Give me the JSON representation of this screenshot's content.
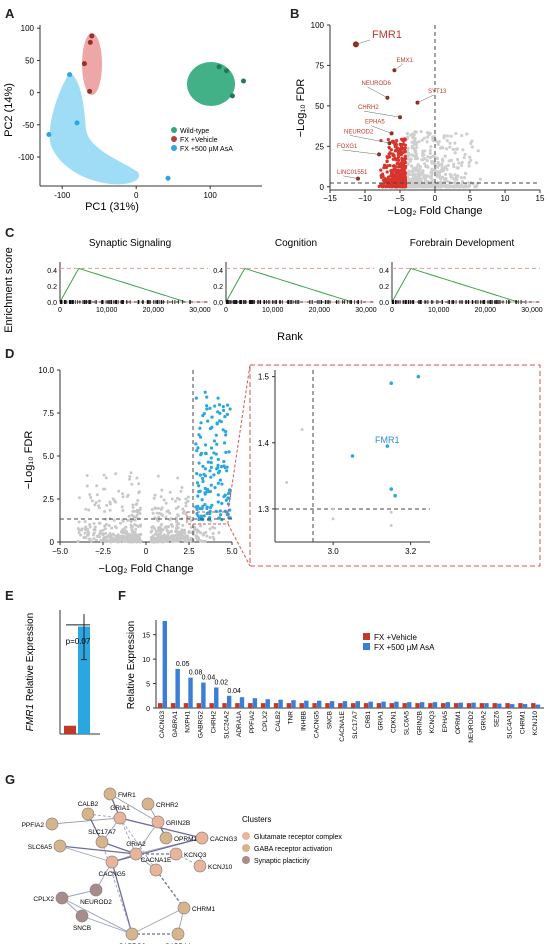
{
  "panels": {
    "A": {
      "label": "A",
      "xlabel": "PC1 (31%)",
      "ylabel": "PC2 (14%)",
      "legend": [
        "Wild-type",
        "FX +Vehicle",
        "FX +500 µM AsA"
      ],
      "chart_data": {
        "type": "scatter",
        "xlim": [
          -130,
          170
        ],
        "ylim": [
          -145,
          105
        ],
        "x_ticks": [
          -100,
          0,
          100
        ],
        "y_ticks": [
          100,
          50,
          0,
          -50,
          -100
        ],
        "series": [
          {
            "name": "Wild-type",
            "color": "#2ea87a",
            "points": [
              [
                112,
                40
              ],
              [
                122,
                34
              ],
              [
                145,
                18
              ],
              [
                130,
                -5
              ]
            ]
          },
          {
            "name": "FX +Vehicle",
            "color": "#d0584c",
            "points": [
              [
                -60,
                88
              ],
              [
                -62,
                78
              ],
              [
                -70,
                45
              ],
              [
                -63,
                2
              ]
            ]
          },
          {
            "name": "FX +500 µM AsA",
            "color": "#2aa7e0",
            "points": [
              [
                -90,
                28
              ],
              [
                -80,
                -47
              ],
              [
                -118,
                -65
              ],
              [
                43,
                -133
              ]
            ]
          }
        ]
      }
    },
    "B": {
      "label": "B",
      "xlabel": "−Log₂ Fold Change",
      "ylabel": "−Log₁₀ FDR",
      "chart_data": {
        "type": "scatter",
        "xlim": [
          -15,
          15
        ],
        "ylim": [
          -2,
          100
        ],
        "x_ticks": [
          -15,
          -10,
          -5,
          0,
          5,
          10,
          15
        ],
        "y_ticks": [
          0,
          25,
          50,
          75,
          100
        ],
        "annotations": [
          "FMR1",
          "EMX1",
          "NEUROD6",
          "CHRH2",
          "SYT13",
          "EPHA5",
          "NEUROD2",
          "FOXG1",
          "LINC01551"
        ]
      }
    },
    "C": {
      "label": "C",
      "ylabel": "Enrichment score",
      "xlabel": "Rank",
      "titles": [
        "Synaptic Signaling",
        "Cognition",
        "Forebrain Development"
      ],
      "chart_data": {
        "type": "line",
        "xlim": [
          0,
          30000
        ],
        "ylim": [
          0,
          0.45
        ],
        "x_ticks": [
          0,
          10000,
          20000,
          30000
        ],
        "x_tick_labels": [
          "0",
          "10,000",
          "20,000",
          "30,000"
        ],
        "y_ticks": [
          0,
          0.2,
          0.4
        ]
      }
    },
    "D": {
      "label": "D",
      "xlabel": "−Log₂ Fold Change",
      "ylabel": "−Log₁₀ FDR",
      "annotation": "FMR1",
      "chart_data": {
        "type": "scatter",
        "xlim": [
          -5,
          5
        ],
        "ylim": [
          0,
          10
        ],
        "x_ticks": [
          "−5.0",
          "−2.5",
          "0",
          "2.5",
          "5.0"
        ],
        "y_ticks": [
          "0",
          "2.5",
          "5.0",
          "7.5",
          "10.0"
        ],
        "zoom": {
          "x_ticks": [
            "3.0",
            "3.2"
          ],
          "y_ticks": [
            "1.3",
            "1.4",
            "1.5"
          ],
          "points": [
            [
              3.22,
              1.5
            ],
            [
              3.15,
              1.49
            ],
            [
              3.14,
              1.395
            ],
            [
              3.05,
              1.38
            ],
            [
              3.15,
              1.33
            ],
            [
              3.16,
              1.32
            ],
            [
              3.0,
              1.3
            ],
            [
              3.15,
              1.295
            ],
            [
              2.92,
              1.42
            ],
            [
              2.88,
              1.34
            ],
            [
              3.0,
              1.285
            ],
            [
              3.15,
              1.275
            ]
          ]
        }
      }
    },
    "E": {
      "label": "E",
      "ylabel_gene": "FMR1",
      "ylabel_rest": " Relative Expression",
      "pvalue": "p=0.07",
      "chart_data": {
        "type": "bar",
        "categories": [
          "FX +Vehicle",
          "FX +500 µM AsA"
        ],
        "values": [
          1,
          13
        ],
        "ylim": [
          0,
          15
        ]
      }
    },
    "F": {
      "label": "F",
      "ylabel": "Relative Expression",
      "legend": [
        "FX +Vehicle",
        "FX +500 µM AsA"
      ],
      "y_ticks": [
        "0",
        "5",
        "10",
        "15"
      ],
      "chart_data": {
        "type": "bar",
        "ylim": [
          0,
          18
        ],
        "categories": [
          "CACNG3",
          "GABRA1",
          "NXPH1",
          "GABRG2",
          "CHRH2",
          "SLC24A2",
          "ADRA1A",
          "PPFIA2",
          "CPLX2",
          "CALB2",
          "TNR",
          "INHBB",
          "CACNG5",
          "SNCB",
          "CACNA1E",
          "SLC17A7",
          "CRB1",
          "GRIA1",
          "CDKN1",
          "SLC6A5",
          "GRIN2B",
          "KCNQ3",
          "EPHA5",
          "OPRM1",
          "NEUROD2",
          "GRIA2",
          "SEZ6",
          "SLC4A10",
          "CHRM1",
          "KCNJ10"
        ],
        "series": [
          {
            "name": "FX +Vehicle",
            "color": "#c0392b",
            "values": [
              1,
              1,
              1,
              1,
              1,
              1,
              1,
              1,
              1,
              1,
              1,
              1,
              1,
              1,
              1,
              1,
              1,
              1,
              1,
              1,
              1,
              1,
              1,
              1,
              1,
              1,
              1,
              1,
              1,
              1
            ]
          },
          {
            "name": "FX +500 µM AsA",
            "color": "#3a7fd5",
            "values": [
              17.8,
              8,
              6.2,
              5.2,
              4.2,
              2.5,
              2.2,
              2,
              1.8,
              1.7,
              1.6,
              1.5,
              1.5,
              1.4,
              1.4,
              1.4,
              1.3,
              1.3,
              1.3,
              1.2,
              1.2,
              1.2,
              1.2,
              1.1,
              1.1,
              1.0,
              0.9,
              0.8,
              0.8,
              0.7
            ]
          }
        ],
        "pvalues": [
          {
            "index": 1,
            "text": "0.05"
          },
          {
            "index": 2,
            "text": "0.08"
          },
          {
            "index": 3,
            "text": "0.04"
          },
          {
            "index": 4,
            "text": "0.02"
          },
          {
            "index": 5,
            "text": "0.04"
          }
        ]
      }
    },
    "G": {
      "label": "G",
      "legend_title": "Clusters",
      "legend": [
        "Glutamate receptor complex",
        "GABA receptor activation",
        "Synaptic placticity"
      ],
      "nodes": [
        "FMR1",
        "CRHR2",
        "PPFIA2",
        "CALB2",
        "GRIA1",
        "GRIN2B",
        "OPRM1",
        "CACNG3",
        "SLC6A5",
        "SLC17A7",
        "GRIA2",
        "KCNQ3",
        "KCNJ10",
        "CACNA1E",
        "CACNG5",
        "CPLX2",
        "NEUROD2",
        "SNCB",
        "CHRM1",
        "GABRG2",
        "GABRA1"
      ]
    }
  },
  "colors": {
    "red": "#d9342b",
    "blue": "#2aa7e0",
    "grey": "#c8c8c8",
    "green": "#2ea87a",
    "salmon": "#e9b49a",
    "tan": "#d8b48a",
    "mauve": "#a98b8b"
  }
}
